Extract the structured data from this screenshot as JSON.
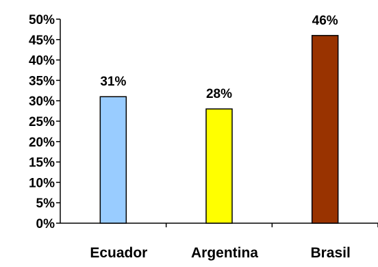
{
  "chart_data": {
    "type": "bar",
    "categories": [
      "Ecuador",
      "Argentina",
      "Brasil"
    ],
    "values": [
      31,
      28,
      46
    ],
    "data_labels": [
      "31%",
      "28%",
      "46%"
    ],
    "colors": [
      "#99ccff",
      "#ffff00",
      "#993300"
    ],
    "ylim": [
      0,
      50
    ],
    "y_ticks": [
      "0%",
      "5%",
      "10%",
      "15%",
      "20%",
      "25%",
      "30%",
      "35%",
      "40%",
      "45%",
      "50%"
    ],
    "grid": false,
    "legend": "none"
  }
}
